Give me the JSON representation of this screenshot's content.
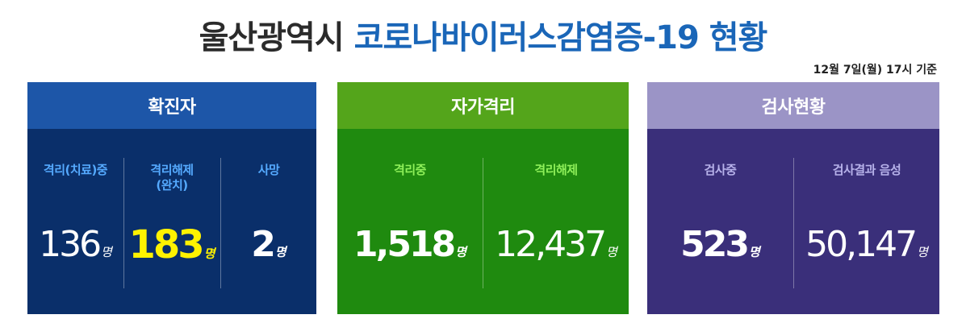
{
  "title": {
    "part1": "울산광역시",
    "part2": "코로나바이러스감염증-19 현황"
  },
  "basis": "12월 7일(월) 17시 기준",
  "cards": {
    "confirmed": {
      "header": "확진자",
      "items": [
        {
          "label": "격리(치료)중",
          "value": "136",
          "unit": "명"
        },
        {
          "label": "격리해제 (완치)",
          "value": "183",
          "unit": "명"
        },
        {
          "label": "사망",
          "value": "2",
          "unit": "명"
        }
      ]
    },
    "self_quarantine": {
      "header": "자가격리",
      "items": [
        {
          "label": "격리중",
          "value": "1,518",
          "unit": "명"
        },
        {
          "label": "격리해제",
          "value": "12,437",
          "unit": "명"
        }
      ]
    },
    "testing": {
      "header": "검사현황",
      "items": [
        {
          "label": "검사중",
          "value": "523",
          "unit": "명"
        },
        {
          "label": "검사결과 음성",
          "value": "50,147",
          "unit": "명"
        }
      ]
    }
  },
  "colors": {
    "title_dark": "#2b2b2b",
    "title_blue": "#1a66b8",
    "confirmed_header": "#1d56a8",
    "confirmed_body": "#0a2f6a",
    "quarantine_header": "#54a51b",
    "quarantine_body": "#1f8a0f",
    "testing_header": "#9b94c6",
    "testing_body": "#3a2f7a",
    "highlight": "#fff200"
  }
}
